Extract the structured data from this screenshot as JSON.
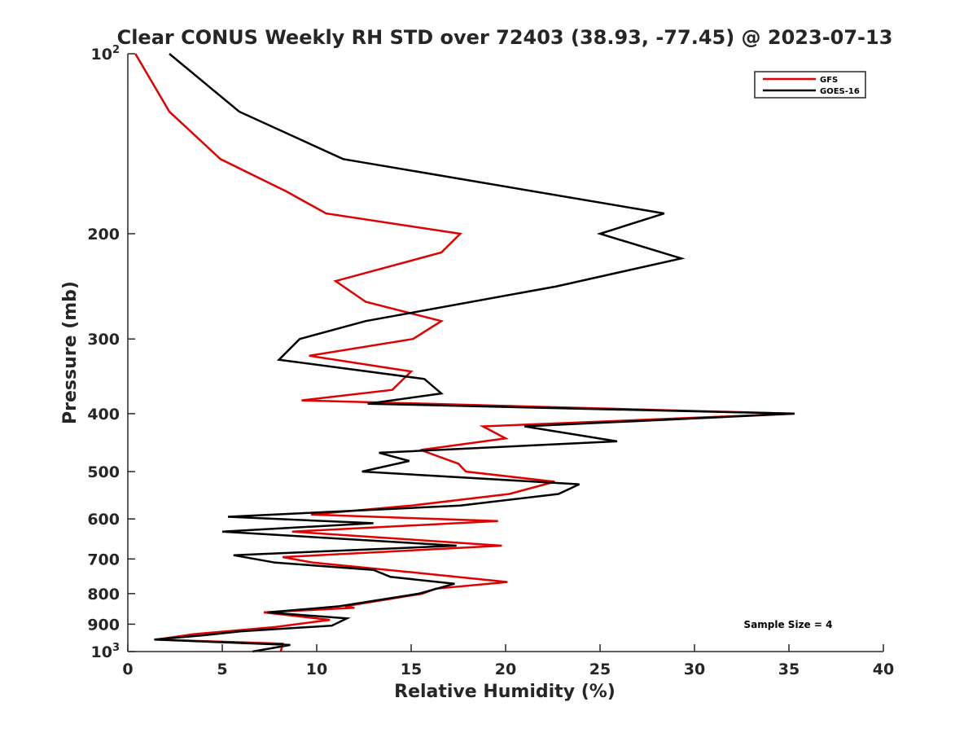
{
  "chart_data": {
    "type": "line",
    "title": "Clear CONUS Weekly RH STD over 72403 (38.93, -77.45) @ 2023-07-13",
    "xlabel": "Relative Humidity (%)",
    "ylabel": "Pressure (mb)",
    "xlim": [
      0,
      40
    ],
    "ylim": [
      100,
      1000
    ],
    "y_scale": "log",
    "y_reversed": true,
    "x_ticks": [
      "0",
      "5",
      "10",
      "15",
      "20",
      "25",
      "30",
      "35",
      "40"
    ],
    "y_ticks": [
      {
        "value": 100,
        "base": "10",
        "exp": "2"
      },
      {
        "value": 200,
        "label": "200"
      },
      {
        "value": 300,
        "label": "300"
      },
      {
        "value": 400,
        "label": "400"
      },
      {
        "value": 500,
        "label": "500"
      },
      {
        "value": 600,
        "label": "600"
      },
      {
        "value": 700,
        "label": "700"
      },
      {
        "value": 800,
        "label": "800"
      },
      {
        "value": 900,
        "label": "900"
      },
      {
        "value": 1000,
        "base": "10",
        "exp": "3"
      }
    ],
    "legend_position": "top-right",
    "grid": false,
    "annotation": "Sample Size = 4",
    "series": [
      {
        "name": "GFS",
        "color": "#e00000",
        "points": [
          [
            0.4,
            100
          ],
          [
            2.2,
            125
          ],
          [
            4.9,
            150
          ],
          [
            8.4,
            170
          ],
          [
            10.5,
            185
          ],
          [
            17.6,
            200
          ],
          [
            16.6,
            215
          ],
          [
            11.0,
            240
          ],
          [
            12.6,
            260
          ],
          [
            16.6,
            280
          ],
          [
            15.1,
            300
          ],
          [
            9.6,
            320
          ],
          [
            15.0,
            340
          ],
          [
            14.0,
            365
          ],
          [
            9.2,
            380
          ],
          [
            35.3,
            400
          ],
          [
            18.8,
            420
          ],
          [
            20.0,
            440
          ],
          [
            15.5,
            460
          ],
          [
            17.5,
            485
          ],
          [
            17.9,
            500
          ],
          [
            22.6,
            520
          ],
          [
            20.2,
            545
          ],
          [
            15.0,
            570
          ],
          [
            9.7,
            590
          ],
          [
            19.6,
            605
          ],
          [
            8.7,
            630
          ],
          [
            19.8,
            665
          ],
          [
            8.2,
            695
          ],
          [
            9.8,
            710
          ],
          [
            15.6,
            740
          ],
          [
            20.1,
            765
          ],
          [
            16.3,
            785
          ],
          [
            15.6,
            800
          ],
          [
            11.5,
            840
          ],
          [
            12.0,
            845
          ],
          [
            7.2,
            860
          ],
          [
            10.7,
            885
          ],
          [
            7.8,
            910
          ],
          [
            3.5,
            935
          ],
          [
            1.5,
            955
          ],
          [
            8.2,
            970
          ],
          [
            8.1,
            1000
          ]
        ]
      },
      {
        "name": "GOES-16",
        "color": "#000000",
        "points": [
          [
            2.2,
            100
          ],
          [
            5.9,
            125
          ],
          [
            11.4,
            150
          ],
          [
            28.4,
            185
          ],
          [
            25.0,
            200
          ],
          [
            29.3,
            220
          ],
          [
            22.7,
            245
          ],
          [
            12.6,
            280
          ],
          [
            9.1,
            300
          ],
          [
            8.0,
            325
          ],
          [
            15.7,
            350
          ],
          [
            16.6,
            370
          ],
          [
            12.7,
            385
          ],
          [
            35.3,
            400
          ],
          [
            21.0,
            420
          ],
          [
            25.9,
            445
          ],
          [
            13.3,
            465
          ],
          [
            14.9,
            480
          ],
          [
            12.4,
            500
          ],
          [
            23.9,
            525
          ],
          [
            22.8,
            545
          ],
          [
            17.6,
            570
          ],
          [
            5.3,
            595
          ],
          [
            13.0,
            610
          ],
          [
            5.0,
            630
          ],
          [
            17.4,
            665
          ],
          [
            5.6,
            690
          ],
          [
            7.8,
            710
          ],
          [
            13.0,
            730
          ],
          [
            13.9,
            750
          ],
          [
            17.3,
            770
          ],
          [
            15.4,
            800
          ],
          [
            11.2,
            840
          ],
          [
            7.4,
            860
          ],
          [
            11.6,
            880
          ],
          [
            10.8,
            905
          ],
          [
            6.0,
            925
          ],
          [
            3.9,
            940
          ],
          [
            1.4,
            955
          ],
          [
            8.6,
            975
          ],
          [
            6.6,
            1000
          ]
        ]
      }
    ]
  }
}
